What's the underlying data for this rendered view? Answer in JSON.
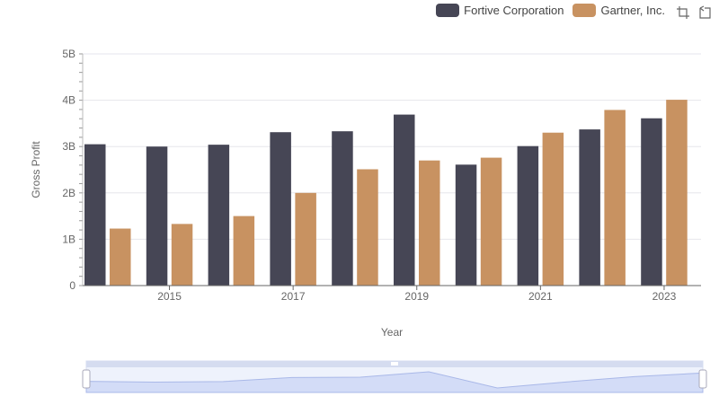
{
  "legend": {
    "items": [
      {
        "label": "Fortive Corporation",
        "color": "#464655"
      },
      {
        "label": "Gartner, Inc.",
        "color": "#c89261"
      }
    ]
  },
  "toolbar": {
    "zoom_icon": "zoom-select-icon",
    "reset_icon": "zoom-reset-icon"
  },
  "chart_data": {
    "type": "bar",
    "xlabel": "Year",
    "ylabel": "Gross Profit",
    "ylim": [
      0,
      5000000000
    ],
    "y_ticks": [
      "0",
      "1B",
      "2B",
      "3B",
      "4B",
      "5B"
    ],
    "x_tick_labels": [
      "2015",
      "2017",
      "2019",
      "2021",
      "2023"
    ],
    "categories": [
      2014,
      2015,
      2016,
      2017,
      2018,
      2019,
      2020,
      2021,
      2022,
      2023
    ],
    "series": [
      {
        "name": "Fortive Corporation",
        "color": "#464655",
        "values": [
          3050000000,
          3000000000,
          3040000000,
          3310000000,
          3330000000,
          3690000000,
          2610000000,
          3010000000,
          3370000000,
          3610000000
        ]
      },
      {
        "name": "Gartner, Inc.",
        "color": "#c89261",
        "values": [
          1230000000,
          1330000000,
          1500000000,
          2000000000,
          2510000000,
          2700000000,
          2760000000,
          3300000000,
          3790000000,
          4010000000
        ]
      }
    ],
    "grid": true,
    "legend_position": "top-right"
  }
}
